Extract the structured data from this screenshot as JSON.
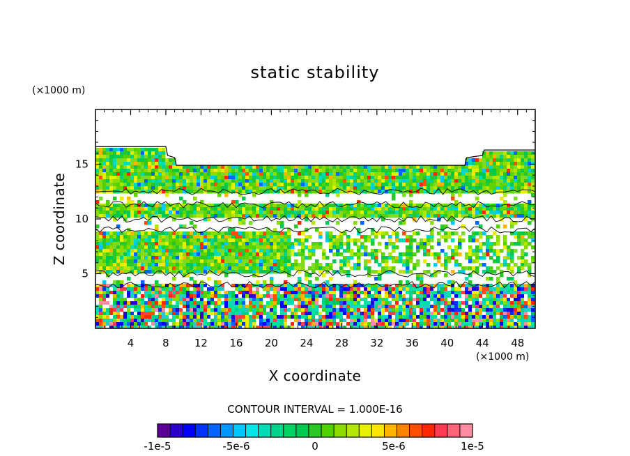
{
  "chart_data": {
    "type": "heatmap",
    "title": "static stability",
    "xlabel": "X coordinate",
    "ylabel": "Z coordinate",
    "x_multiplier": "(×1000 m)",
    "y_multiplier": "(×1000 m)",
    "xlim": [
      0,
      50
    ],
    "ylim": [
      0,
      20
    ],
    "x_ticks": [
      4,
      8,
      12,
      16,
      20,
      24,
      28,
      32,
      36,
      40,
      44,
      48
    ],
    "y_ticks": [
      5,
      10,
      15
    ],
    "contour_interval": "CONTOUR INTERVAL = 1.000E-16",
    "colorbar": {
      "range": [
        -1e-05,
        1e-05
      ],
      "ticks": [
        {
          "value": -1e-05,
          "label": "-1e-5"
        },
        {
          "value": -5e-06,
          "label": "-5e-6"
        },
        {
          "value": 0,
          "label": "0"
        },
        {
          "value": 5e-06,
          "label": "5e-6"
        },
        {
          "value": 1e-05,
          "label": "1e-5"
        }
      ],
      "colors": [
        "#5a0096",
        "#2800c8",
        "#0000ff",
        "#0032ff",
        "#0064ff",
        "#0096ff",
        "#00c8ff",
        "#00e6e6",
        "#00dcb4",
        "#00d28c",
        "#00d264",
        "#00c850",
        "#28c828",
        "#50d200",
        "#8cdc00",
        "#b4e600",
        "#e6f000",
        "#ffe600",
        "#ffb400",
        "#ff8200",
        "#ff5000",
        "#ff2800",
        "#ff3c50",
        "#ff6478",
        "#ff8ca0"
      ]
    },
    "field_bands": [
      {
        "z": [
          0,
          4
        ],
        "description": "strong mixed positive and negative values"
      },
      {
        "z": [
          4,
          16.5
        ],
        "description": "mostly near-zero to weak positive, with white undefined gaps"
      }
    ]
  }
}
